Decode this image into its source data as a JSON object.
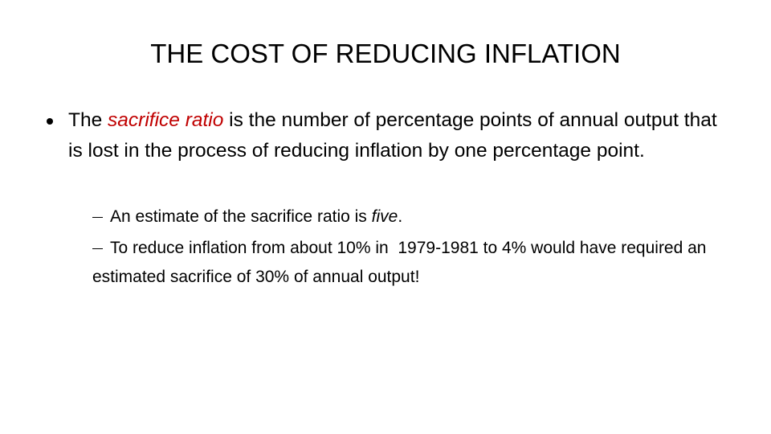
{
  "title": "THE COST OF REDUCING INFLATION",
  "bullets": [
    {
      "runs": [
        "The ",
        "sacrifice ratio",
        " is the number of percentage points of annual output that is lost in the process of reducing inflation by one percentage point."
      ],
      "sub_bullets": [
        {
          "runs": [
            "An estimate of the sacrifice ratio is ",
            "five",
            "."
          ]
        },
        {
          "runs": [
            "To reduce inflation from about 10% in  1979-1981 to 4% would have required an estimated sacrifice of 30% of annual output!"
          ]
        }
      ]
    }
  ]
}
